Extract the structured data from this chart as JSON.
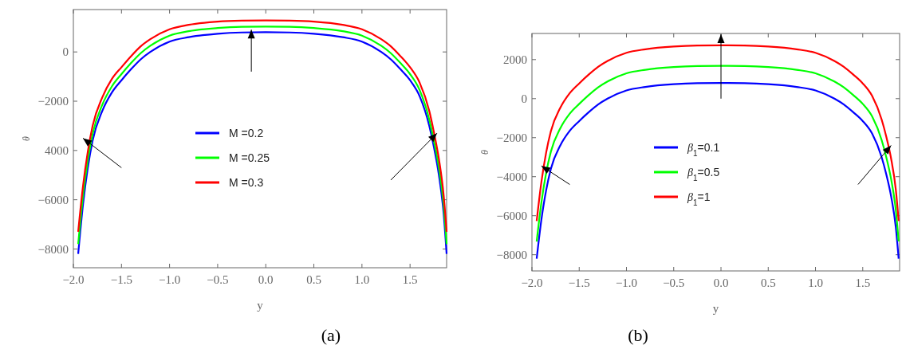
{
  "chart_data": [
    {
      "type": "line",
      "xlabel": "y",
      "ylabel": "θ",
      "xlim": [
        -2.0,
        1.88
      ],
      "xticks": [
        {
          "value": -2,
          "label": "−2.0"
        },
        {
          "value": -1.5,
          "label": "−1.5"
        },
        {
          "value": -1,
          "label": "−1.0"
        },
        {
          "value": -0.5,
          "label": "−0.5"
        },
        {
          "value": 0,
          "label": "0.0"
        },
        {
          "value": 0.5,
          "label": "0.5"
        },
        {
          "value": 1,
          "label": "1.0"
        },
        {
          "value": 1.5,
          "label": "1.5"
        }
      ],
      "ylim": [
        -8760,
        1720
      ],
      "yticks": [
        {
          "value": -8000,
          "label": "−8000"
        },
        {
          "value": -6000,
          "label": "−6000"
        },
        {
          "value": -4000,
          "label": "4000"
        },
        {
          "value": -2000,
          "label": "−2000"
        },
        {
          "value": 0,
          "label": "0"
        }
      ],
      "legend": "center",
      "annotations": [
        "(a)"
      ],
      "x": [
        -1.95,
        -1.9,
        -1.85,
        -1.8,
        -1.7,
        -1.6,
        -1.5,
        -1.4,
        -1.3,
        -1.2,
        -1.0,
        -0.8,
        -0.5,
        -0.25,
        0,
        0.25,
        0.5,
        0.8,
        1.0,
        1.2,
        1.3,
        1.4,
        1.5,
        1.6,
        1.7,
        1.75,
        1.8,
        1.85,
        1.88
      ],
      "series": [
        {
          "name": "M =0.2",
          "color": "#0000ff",
          "values": [
            -8200,
            -6200,
            -4700,
            -3600,
            -2400,
            -1650,
            -1150,
            -700,
            -300,
            0,
            420,
            600,
            740,
            790,
            800,
            790,
            740,
            600,
            420,
            0,
            -300,
            -700,
            -1150,
            -1800,
            -3000,
            -3900,
            -5000,
            -6600,
            -8200
          ]
        },
        {
          "name": "M =0.25",
          "color": "#00ff00",
          "values": [
            -7800,
            -5850,
            -4400,
            -3330,
            -2150,
            -1400,
            -900,
            -450,
            -50,
            250,
            660,
            840,
            970,
            1020,
            1030,
            1020,
            970,
            840,
            660,
            250,
            -50,
            -450,
            -900,
            -1550,
            -2750,
            -3650,
            -4700,
            -6250,
            -7800
          ]
        },
        {
          "name": "M =0.3",
          "color": "#ff0000",
          "values": [
            -7300,
            -5450,
            -4050,
            -3000,
            -1850,
            -1100,
            -620,
            -170,
            230,
            520,
            920,
            1100,
            1230,
            1270,
            1280,
            1270,
            1230,
            1100,
            920,
            520,
            230,
            -170,
            -620,
            -1250,
            -2400,
            -3300,
            -4350,
            -5850,
            -7300
          ]
        }
      ]
    },
    {
      "type": "line",
      "xlabel": "y",
      "ylabel": "θ",
      "xlim": [
        -2.0,
        1.89
      ],
      "xticks": [
        {
          "value": -2,
          "label": "−2.0"
        },
        {
          "value": -1.5,
          "label": "−1.5"
        },
        {
          "value": -1,
          "label": "−1.0"
        },
        {
          "value": -0.5,
          "label": "−0.5"
        },
        {
          "value": 0,
          "label": "0.0"
        },
        {
          "value": 0.5,
          "label": "0.5"
        },
        {
          "value": 1,
          "label": "1.0"
        },
        {
          "value": 1.5,
          "label": "1.5"
        }
      ],
      "ylim": [
        -8830,
        3340
      ],
      "yticks": [
        {
          "value": -8000,
          "label": "−8000"
        },
        {
          "value": -6000,
          "label": "−6000"
        },
        {
          "value": -4000,
          "label": "−4000"
        },
        {
          "value": -2000,
          "label": "−2000"
        },
        {
          "value": 0,
          "label": "0"
        },
        {
          "value": 2000,
          "label": "2000"
        }
      ],
      "legend": "center",
      "annotations": [
        "(b)"
      ],
      "x": [
        -1.95,
        -1.9,
        -1.85,
        -1.8,
        -1.7,
        -1.6,
        -1.5,
        -1.4,
        -1.3,
        -1.2,
        -1.0,
        -0.8,
        -0.5,
        -0.25,
        0,
        0.25,
        0.5,
        0.8,
        1.0,
        1.2,
        1.3,
        1.4,
        1.5,
        1.6,
        1.7,
        1.75,
        1.8,
        1.85,
        1.88
      ],
      "series": [
        {
          "name": "β$_{1}$=0.1",
          "color": "#0000ff",
          "values": [
            -8200,
            -6200,
            -4700,
            -3600,
            -2400,
            -1650,
            -1150,
            -700,
            -300,
            0,
            420,
            600,
            740,
            790,
            800,
            790,
            740,
            600,
            420,
            0,
            -300,
            -700,
            -1150,
            -1800,
            -3000,
            -3900,
            -5000,
            -6600,
            -8200
          ]
        },
        {
          "name": "β$_{1}$=0.5",
          "color": "#00ff00",
          "values": [
            -7320,
            -5320,
            -3820,
            -2720,
            -1520,
            -770,
            -270,
            180,
            580,
            880,
            1300,
            1480,
            1620,
            1670,
            1680,
            1670,
            1620,
            1480,
            1300,
            880,
            580,
            180,
            -270,
            -920,
            -2120,
            -3020,
            -4120,
            -5720,
            -7320
          ]
        },
        {
          "name": "β$_{1}$=1",
          "color": "#ff0000",
          "values": [
            -6270,
            -4270,
            -2770,
            -1670,
            -470,
            280,
            780,
            1230,
            1630,
            1930,
            2350,
            2530,
            2670,
            2720,
            2730,
            2720,
            2670,
            2530,
            2350,
            1930,
            1630,
            1230,
            780,
            130,
            -1070,
            -1970,
            -3070,
            -4670,
            -6270
          ]
        }
      ]
    }
  ]
}
